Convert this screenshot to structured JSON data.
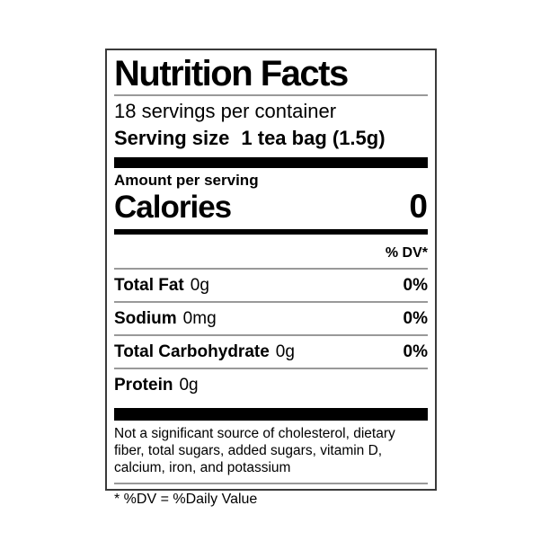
{
  "label": {
    "title": "Nutrition Facts",
    "servings_per_container": "18 servings per container",
    "serving_size_label": "Serving size",
    "serving_size_value": "1 tea bag (1.5g)",
    "amount_per_serving": "Amount per serving",
    "calories_label": "Calories",
    "calories_value": "0",
    "dv_header": "% DV*",
    "nutrients": [
      {
        "name": "Total Fat",
        "amount": "0g",
        "dv": "0%"
      },
      {
        "name": "Sodium",
        "amount": "0mg",
        "dv": "0%"
      },
      {
        "name": "Total Carbohydrate",
        "amount": "0g",
        "dv": "0%"
      },
      {
        "name": "Protein",
        "amount": "0g",
        "dv": ""
      }
    ],
    "footnote": "Not a significant source of cholesterol, dietary fiber, total sugars, added sugars, vitamin D, calcium, iron, and potassium",
    "dv_definition": "* %DV = %Daily Value"
  },
  "colors": {
    "background": "#ffffff",
    "text": "#000000",
    "thick_bar": "#000000",
    "hairline": "#999999",
    "border": "#3a3a3a"
  }
}
